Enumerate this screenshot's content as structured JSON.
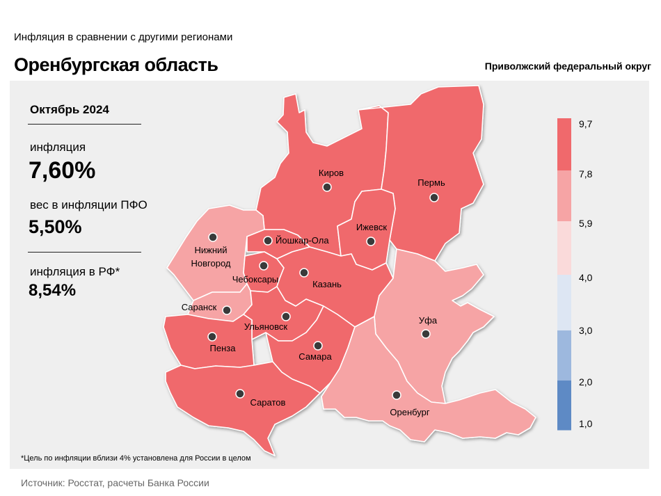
{
  "header": {
    "subtitle": "Инфляция  в сравнении  с другими  регионами",
    "title": "Оренбургская область",
    "district": "Приволжский федеральный округ"
  },
  "stats": {
    "month": "Октябрь 2024",
    "inflation_label": "инфляция",
    "inflation_value": "7,60%",
    "weight_label": "вес в инфляции  ПФО",
    "weight_value": "5,50%",
    "rf_label": "инфляция  в РФ*",
    "rf_value": "8,54%"
  },
  "footnote": "*Цель по инфляции вблизи 4% установлена для России в целом",
  "source": "Источник: Росстат, расчеты Банка России",
  "colors": {
    "high": "#f0696c",
    "mid": "#f6a4a5",
    "low_mid": "#fadada",
    "low": "#dde6f3",
    "lower": "#9db8de",
    "lowest": "#5e8ac5"
  },
  "legend": {
    "ticks": [
      "9,7",
      "7,8",
      "5,9",
      "4,0",
      "3,0",
      "2,0",
      "1,0"
    ]
  },
  "cities": [
    {
      "name": "Киров",
      "bin": "high"
    },
    {
      "name": "Пермь",
      "bin": "high"
    },
    {
      "name": "Ижевск",
      "bin": "high"
    },
    {
      "name": "Йошкар-Ола",
      "bin": "high"
    },
    {
      "name": "Нижний\nНовгород",
      "bin": "mid"
    },
    {
      "name": "Чебоксары",
      "bin": "high"
    },
    {
      "name": "Казань",
      "bin": "high"
    },
    {
      "name": "Саранск",
      "bin": "mid"
    },
    {
      "name": "Ульяновск",
      "bin": "high"
    },
    {
      "name": "Уфа",
      "bin": "mid"
    },
    {
      "name": "Пенза",
      "bin": "high"
    },
    {
      "name": "Самара",
      "bin": "high"
    },
    {
      "name": "Саратов",
      "bin": "high"
    },
    {
      "name": "Оренбург",
      "bin": "mid"
    }
  ]
}
